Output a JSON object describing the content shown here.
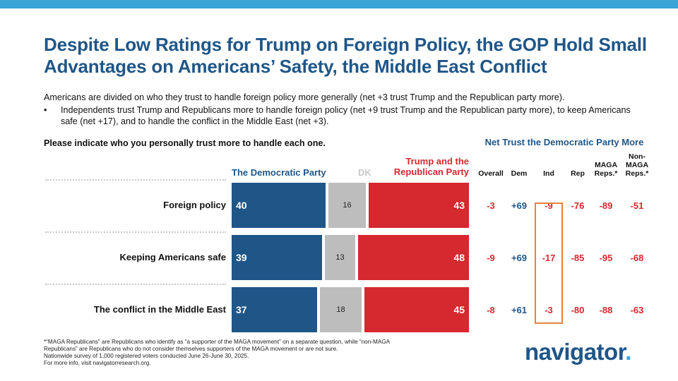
{
  "title": "Despite Low Ratings for Trump on Foreign Policy, the GOP Hold Small Advantages on Americans’ Safety, the Middle East Conflict",
  "intro": "Americans are divided on who they trust to handle foreign policy more generally (net +3 trust Trump and the Republican party more).",
  "bullet": "Independents trust Trump and Republicans more to handle foreign policy (net +9 trust Trump and the Republican party more), to keep Americans safe (net +17), and to handle the conflict in the Middle East (net +3).",
  "bullet_marker": "•",
  "question": "Please indicate who you personally trust more to handle each one.",
  "net_title": "Net Trust the Democratic Party More",
  "legend": {
    "dem": "The Democratic Party",
    "dk": "DK",
    "rep": "Trump and the Republican Party"
  },
  "columns": [
    "Overall",
    "Dem",
    "Ind",
    "Rep",
    "MAGA Reps.*",
    "Non-MAGA Reps.*"
  ],
  "chart_data": {
    "type": "bar",
    "stacked": true,
    "orientation": "horizontal",
    "categories": [
      "Foreign policy",
      "Keeping Americans safe",
      "The conflict in the Middle East"
    ],
    "series": [
      {
        "name": "The Democratic Party",
        "values": [
          40,
          39,
          37
        ],
        "color": "#1f5688"
      },
      {
        "name": "DK",
        "values": [
          16,
          13,
          18
        ],
        "color": "#bdbdbd"
      },
      {
        "name": "Trump and the Republican Party",
        "values": [
          43,
          48,
          45
        ],
        "color": "#d6282f"
      }
    ],
    "table": {
      "title": "Net Trust the Democratic Party More",
      "columns": [
        "Overall",
        "Dem",
        "Ind",
        "Rep",
        "MAGA Reps.*",
        "Non-MAGA Reps.*"
      ],
      "rows": [
        [
          "-3",
          "+69",
          "-9",
          "-76",
          "-89",
          "-51"
        ],
        [
          "-9",
          "+69",
          "-17",
          "-85",
          "-95",
          "-68"
        ],
        [
          "-8",
          "+61",
          "-3",
          "-80",
          "-88",
          "-63"
        ]
      ],
      "highlight_column": "Ind"
    }
  },
  "colors": {
    "dem": "#1f5688",
    "rep": "#d6282f",
    "dk": "#bdbdbd",
    "negative": "#d6282f",
    "positive": "#1f5688",
    "highlight": "#e8823a",
    "accent": "#3aa3d8"
  },
  "footnote": [
    "*“MAGA Republicans” are Republicans who identify as “a supporter of the MAGA movement” on a separate question, while “non-MAGA",
    "Republicans” are Republicans who do not consider themselves supporters of the MAGA movement or are not sure.",
    "Nationwide survey of 1,000 registered voters conducted June 26-June 30, 2025.",
    "For more info, visit navigatorresearch.org."
  ],
  "logo": {
    "text": "navigator",
    "dot": "."
  }
}
